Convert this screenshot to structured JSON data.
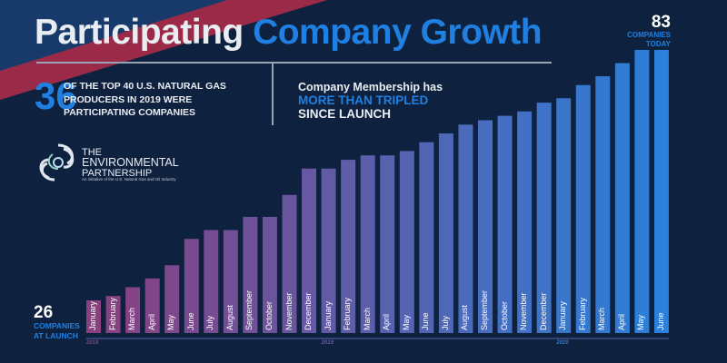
{
  "header": {
    "title_part1": "Participating",
    "title_part2": "Company Growth"
  },
  "stat": {
    "number": "36",
    "lines": [
      "OF THE TOP 40 U.S. NATURAL GAS",
      "PRODUCERS IN 2019 WERE",
      "PARTICIPATING COMPANIES"
    ]
  },
  "membership": {
    "line1": "Company Membership has",
    "line2": "MORE THAN TRIPLED",
    "line3": "SINCE LAUNCH"
  },
  "logo": {
    "line1": "THE",
    "line2": "ENVIRONMENTAL",
    "line3": "PARTNERSHIP",
    "tagline": "An initiative of the U.S. Natural Gas and Oil Industry"
  },
  "callouts": {
    "today_value": "83",
    "today_label1": "COMPANIES",
    "today_label2": "TODAY",
    "launch_value": "26",
    "launch_label1": "COMPANIES",
    "launch_label2": "AT LAUNCH"
  },
  "colors": {
    "background": "#0e213e",
    "accent_blue": "#1f80e2",
    "bar_start": "#8a3f7f",
    "bar_end": "#2a80da",
    "swoop_red": "#9b2a48"
  },
  "chart_data": {
    "type": "bar",
    "title": "Participating Company Growth",
    "categories": [
      "January",
      "February",
      "March",
      "April",
      "May",
      "June",
      "July",
      "August",
      "September",
      "October",
      "November",
      "December",
      "January",
      "February",
      "March",
      "April",
      "May",
      "June",
      "July",
      "August",
      "September",
      "October",
      "November",
      "December",
      "January",
      "February",
      "March",
      "April",
      "May",
      "June"
    ],
    "years": [
      {
        "label": "2018",
        "start_index": 0
      },
      {
        "label": "2019",
        "start_index": 12
      },
      {
        "label": "2020",
        "start_index": 24
      }
    ],
    "values": [
      26,
      27,
      29,
      31,
      34,
      40,
      42,
      42,
      45,
      45,
      50,
      56,
      56,
      58,
      59,
      59,
      60,
      62,
      64,
      66,
      67,
      68,
      69,
      71,
      72,
      75,
      77,
      80,
      83,
      83
    ],
    "grid": false
  }
}
